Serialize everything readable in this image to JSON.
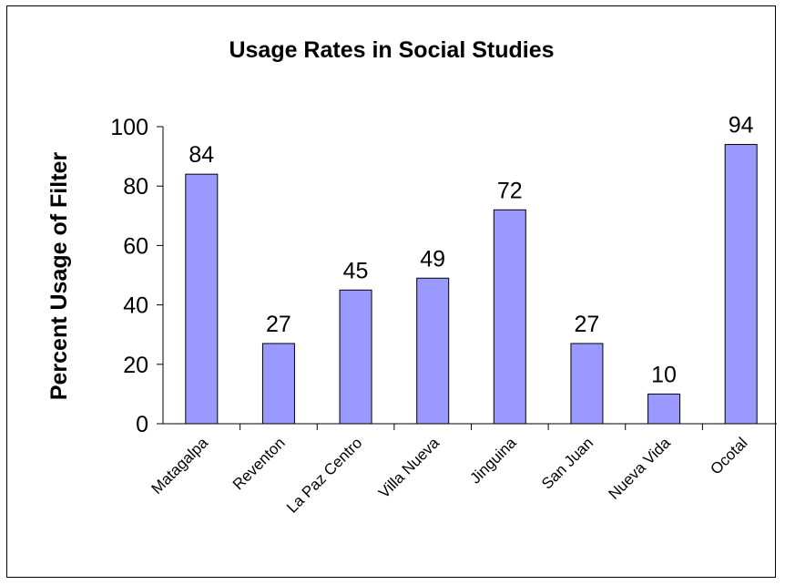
{
  "chart_data": {
    "type": "bar",
    "title": "Usage Rates in Social Studies",
    "xlabel": "",
    "ylabel": "Percent Usage of Filter",
    "categories": [
      "Matagalpa",
      "Reventon",
      "La Paz Centro",
      "Villa Nueva",
      "Jinguina",
      "San Juan",
      "Nueva Vida",
      "Ocotal"
    ],
    "values": [
      84,
      27,
      45,
      49,
      72,
      27,
      10,
      94
    ],
    "data_labels": [
      "84",
      "27",
      "45",
      "49",
      "72",
      "27",
      "10",
      "94"
    ],
    "ylim": [
      0,
      100
    ],
    "yticks": [
      0,
      20,
      40,
      60,
      80,
      100
    ],
    "ytick_labels": [
      "0",
      "20",
      "40",
      "60",
      "80",
      "100"
    ],
    "grid": false,
    "legend": false,
    "bar_color": "#9999ff",
    "bar_edge_color": "#000000"
  }
}
